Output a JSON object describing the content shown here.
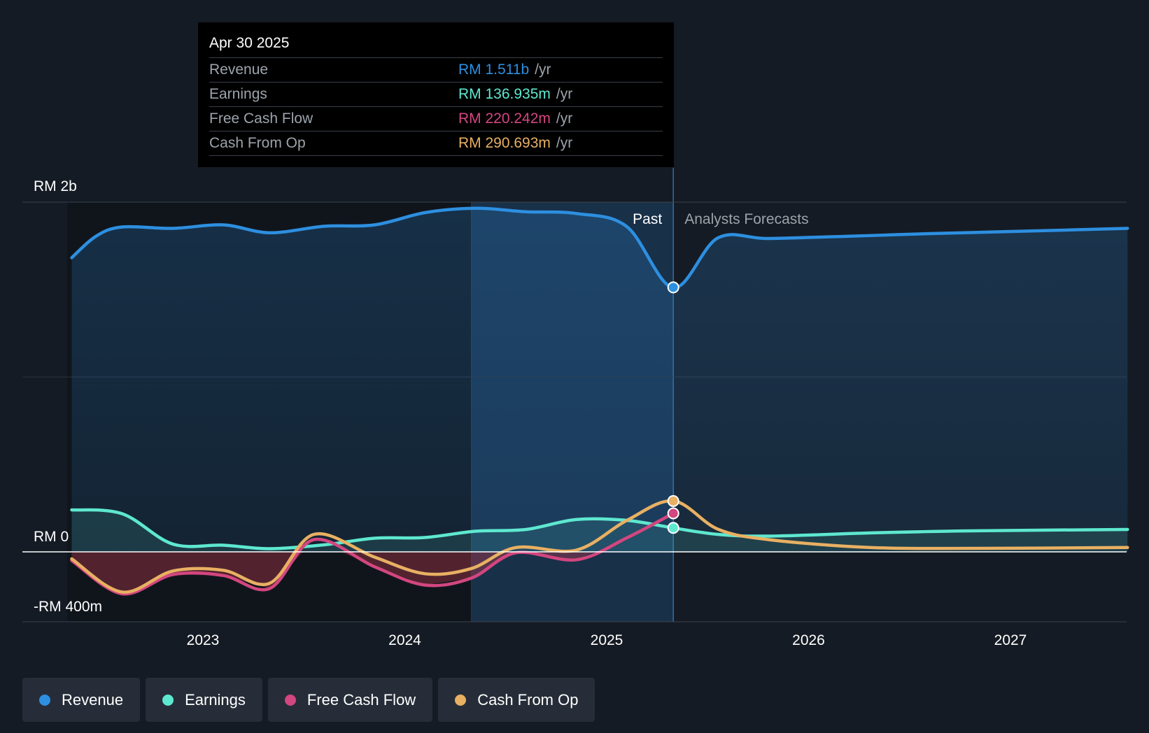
{
  "tooltip": {
    "date": "Apr 30 2025",
    "rows": [
      {
        "label": "Revenue",
        "value": "RM 1.511b",
        "unit": "/yr",
        "color": "#2d8fe0"
      },
      {
        "label": "Earnings",
        "value": "RM 136.935m",
        "unit": "/yr",
        "color": "#5ee8d0"
      },
      {
        "label": "Free Cash Flow",
        "value": "RM 220.242m",
        "unit": "/yr",
        "color": "#d3467f"
      },
      {
        "label": "Cash From Op",
        "value": "RM 290.693m",
        "unit": "/yr",
        "color": "#e8b062"
      }
    ]
  },
  "legend": [
    {
      "label": "Revenue",
      "color": "#2d8fe0"
    },
    {
      "label": "Earnings",
      "color": "#5ee8d0"
    },
    {
      "label": "Free Cash Flow",
      "color": "#d3467f"
    },
    {
      "label": "Cash From Op",
      "color": "#e8b062"
    }
  ],
  "chart_data": {
    "type": "line",
    "title": "",
    "xlabel": "",
    "ylabel": "",
    "currency": "RM",
    "ylim": [
      -400,
      2000
    ],
    "y_ticks": [
      {
        "value": 2000,
        "label": "RM 2b"
      },
      {
        "value": 0,
        "label": "RM 0"
      },
      {
        "value": -400,
        "label": "-RM 400m"
      }
    ],
    "xlim": [
      2022.35,
      2027.58
    ],
    "x_ticks": [
      {
        "value": 2023,
        "label": "2023"
      },
      {
        "value": 2024,
        "label": "2024"
      },
      {
        "value": 2025,
        "label": "2025"
      },
      {
        "value": 2026,
        "label": "2026"
      },
      {
        "value": 2027,
        "label": "2027"
      }
    ],
    "past_label": "Past",
    "forecast_label": "Analysts Forecasts",
    "divider_x": 2025.33,
    "highlight_start_x": 2024.33,
    "series": [
      {
        "name": "Revenue",
        "color": "#2d8fe0",
        "points": [
          [
            2022.35,
            1682
          ],
          [
            2022.47,
            1805
          ],
          [
            2022.6,
            1858
          ],
          [
            2022.85,
            1850
          ],
          [
            2023.1,
            1870
          ],
          [
            2023.33,
            1825
          ],
          [
            2023.6,
            1862
          ],
          [
            2023.85,
            1870
          ],
          [
            2024.1,
            1940
          ],
          [
            2024.35,
            1965
          ],
          [
            2024.6,
            1945
          ],
          [
            2024.85,
            1935
          ],
          [
            2025.1,
            1860
          ],
          [
            2025.33,
            1511
          ],
          [
            2025.55,
            1795
          ],
          [
            2025.8,
            1792
          ],
          [
            2026.2,
            1805
          ],
          [
            2026.6,
            1820
          ],
          [
            2027.1,
            1835
          ],
          [
            2027.58,
            1850
          ]
        ]
      },
      {
        "name": "Earnings",
        "color": "#5ee8d0",
        "points": [
          [
            2022.35,
            240
          ],
          [
            2022.6,
            218
          ],
          [
            2022.85,
            45
          ],
          [
            2023.1,
            38
          ],
          [
            2023.33,
            18
          ],
          [
            2023.6,
            40
          ],
          [
            2023.85,
            78
          ],
          [
            2024.1,
            82
          ],
          [
            2024.35,
            118
          ],
          [
            2024.6,
            128
          ],
          [
            2024.85,
            185
          ],
          [
            2025.1,
            180
          ],
          [
            2025.33,
            136.935
          ],
          [
            2025.55,
            100
          ],
          [
            2025.8,
            90
          ],
          [
            2026.3,
            108
          ],
          [
            2026.8,
            120
          ],
          [
            2027.58,
            128
          ]
        ]
      },
      {
        "name": "Free Cash Flow",
        "color": "#d3467f",
        "points": [
          [
            2022.35,
            -50
          ],
          [
            2022.6,
            -240
          ],
          [
            2022.85,
            -130
          ],
          [
            2023.1,
            -135
          ],
          [
            2023.33,
            -210
          ],
          [
            2023.55,
            70
          ],
          [
            2023.85,
            -85
          ],
          [
            2024.1,
            -190
          ],
          [
            2024.33,
            -150
          ],
          [
            2024.55,
            -5
          ],
          [
            2024.85,
            -45
          ],
          [
            2025.1,
            80
          ],
          [
            2025.33,
            220.242
          ]
        ]
      },
      {
        "name": "Cash From Op",
        "color": "#e8b062",
        "points": [
          [
            2022.35,
            -40
          ],
          [
            2022.6,
            -230
          ],
          [
            2022.85,
            -110
          ],
          [
            2023.1,
            -105
          ],
          [
            2023.33,
            -180
          ],
          [
            2023.55,
            100
          ],
          [
            2023.85,
            -30
          ],
          [
            2024.1,
            -125
          ],
          [
            2024.33,
            -95
          ],
          [
            2024.55,
            25
          ],
          [
            2024.85,
            10
          ],
          [
            2025.1,
            180
          ],
          [
            2025.33,
            290.693
          ],
          [
            2025.55,
            130
          ],
          [
            2025.8,
            70
          ],
          [
            2026.3,
            25
          ],
          [
            2026.8,
            20
          ],
          [
            2027.58,
            25
          ]
        ]
      }
    ]
  }
}
